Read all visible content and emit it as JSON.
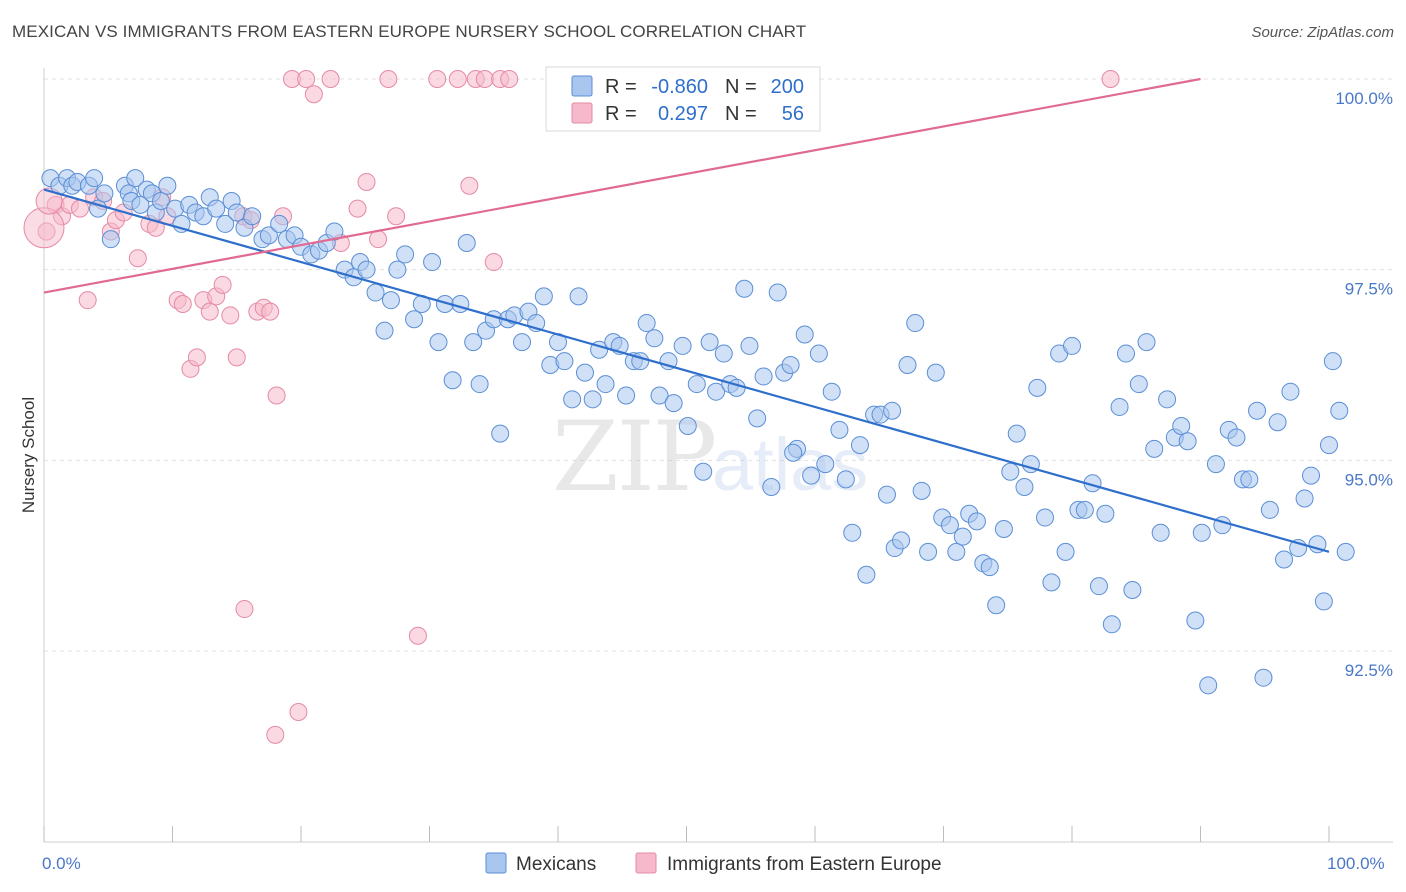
{
  "chart_data": {
    "type": "scatter",
    "title": "MEXICAN VS IMMIGRANTS FROM EASTERN EUROPE NURSERY SCHOOL CORRELATION CHART",
    "source": "Source: ZipAtlas.com",
    "xlabel": "",
    "ylabel": "Nursery School",
    "xlim": [
      0,
      100
    ],
    "ylim": [
      90.0,
      100.2
    ],
    "x_tick_labels": [
      "0.0%",
      "100.0%"
    ],
    "y_ticks": [
      92.5,
      95.0,
      97.5,
      100.0
    ],
    "y_tick_labels": [
      "92.5%",
      "95.0%",
      "97.5%",
      "100.0%"
    ],
    "watermark": {
      "zip": "ZIP",
      "atlas": "atlas"
    },
    "colors": {
      "blue_fill": "#a9c6ef",
      "blue_stroke": "#5b8fd6",
      "blue_line": "#2f6fcc",
      "pink_fill": "#f5b9cb",
      "pink_stroke": "#e58aa6",
      "pink_line": "#e06a92",
      "tick_text": "#4a78c8"
    },
    "legend": {
      "series": [
        {
          "r_label": "R =",
          "r_value": "-0.860",
          "n_label": "N =",
          "n_value": "200"
        },
        {
          "r_label": "R =",
          "r_value": "0.297",
          "n_label": "N =",
          "n_value": "56"
        }
      ]
    },
    "series": [
      {
        "name": "Mexicans",
        "trend": {
          "x0": 0,
          "y0": 98.55,
          "x1": 100,
          "y1": 93.8
        },
        "points": [
          [
            0.5,
            98.7
          ],
          [
            1.2,
            98.6
          ],
          [
            1.8,
            98.7
          ],
          [
            2.2,
            98.6
          ],
          [
            2.6,
            98.65
          ],
          [
            3.5,
            98.6
          ],
          [
            3.9,
            98.7
          ],
          [
            4.2,
            98.3
          ],
          [
            4.7,
            98.5
          ],
          [
            5.2,
            97.9
          ],
          [
            6.3,
            98.6
          ],
          [
            6.6,
            98.5
          ],
          [
            6.8,
            98.4
          ],
          [
            7.1,
            98.7
          ],
          [
            7.5,
            98.35
          ],
          [
            8.0,
            98.55
          ],
          [
            8.4,
            98.5
          ],
          [
            8.7,
            98.25
          ],
          [
            9.1,
            98.4
          ],
          [
            9.6,
            98.6
          ],
          [
            10.2,
            98.3
          ],
          [
            10.7,
            98.1
          ],
          [
            11.3,
            98.35
          ],
          [
            11.8,
            98.25
          ],
          [
            12.4,
            98.2
          ],
          [
            12.9,
            98.45
          ],
          [
            13.4,
            98.3
          ],
          [
            14.1,
            98.1
          ],
          [
            14.6,
            98.4
          ],
          [
            15.0,
            98.25
          ],
          [
            15.6,
            98.05
          ],
          [
            16.2,
            98.2
          ],
          [
            17.0,
            97.9
          ],
          [
            17.5,
            97.95
          ],
          [
            18.3,
            98.1
          ],
          [
            18.9,
            97.9
          ],
          [
            19.5,
            97.95
          ],
          [
            20.0,
            97.8
          ],
          [
            20.8,
            97.7
          ],
          [
            21.4,
            97.75
          ],
          [
            22.0,
            97.85
          ],
          [
            22.6,
            98.0
          ],
          [
            23.4,
            97.5
          ],
          [
            24.1,
            97.4
          ],
          [
            24.6,
            97.6
          ],
          [
            25.1,
            97.5
          ],
          [
            25.8,
            97.2
          ],
          [
            26.5,
            96.7
          ],
          [
            27.0,
            97.1
          ],
          [
            27.5,
            97.5
          ],
          [
            28.1,
            97.7
          ],
          [
            28.8,
            96.85
          ],
          [
            29.4,
            97.05
          ],
          [
            30.2,
            97.6
          ],
          [
            30.7,
            96.55
          ],
          [
            31.2,
            97.05
          ],
          [
            31.8,
            96.05
          ],
          [
            32.4,
            97.05
          ],
          [
            32.9,
            97.85
          ],
          [
            33.4,
            96.55
          ],
          [
            33.9,
            96.0
          ],
          [
            34.4,
            96.7
          ],
          [
            35.0,
            96.85
          ],
          [
            35.5,
            95.35
          ],
          [
            36.1,
            96.85
          ],
          [
            36.6,
            96.9
          ],
          [
            37.2,
            96.55
          ],
          [
            37.7,
            96.95
          ],
          [
            38.3,
            96.8
          ],
          [
            38.9,
            97.15
          ],
          [
            39.4,
            96.25
          ],
          [
            40.0,
            96.55
          ],
          [
            40.5,
            96.3
          ],
          [
            41.1,
            95.8
          ],
          [
            41.6,
            97.15
          ],
          [
            42.1,
            96.15
          ],
          [
            42.7,
            95.8
          ],
          [
            43.2,
            96.45
          ],
          [
            43.7,
            96.0
          ],
          [
            44.3,
            96.55
          ],
          [
            44.8,
            96.5
          ],
          [
            45.3,
            95.85
          ],
          [
            45.9,
            96.3
          ],
          [
            46.4,
            96.3
          ],
          [
            46.9,
            96.8
          ],
          [
            47.5,
            96.6
          ],
          [
            47.9,
            95.85
          ],
          [
            48.6,
            96.3
          ],
          [
            49.0,
            95.75
          ],
          [
            49.7,
            96.5
          ],
          [
            50.1,
            95.45
          ],
          [
            50.8,
            96.0
          ],
          [
            51.3,
            94.85
          ],
          [
            51.8,
            96.55
          ],
          [
            52.3,
            95.9
          ],
          [
            52.9,
            96.4
          ],
          [
            53.4,
            96.0
          ],
          [
            53.9,
            95.95
          ],
          [
            54.5,
            97.25
          ],
          [
            54.9,
            96.5
          ],
          [
            55.5,
            95.55
          ],
          [
            56.0,
            96.1
          ],
          [
            56.6,
            94.65
          ],
          [
            57.1,
            97.2
          ],
          [
            57.6,
            96.15
          ],
          [
            58.1,
            96.25
          ],
          [
            58.6,
            95.15
          ],
          [
            59.2,
            96.65
          ],
          [
            59.7,
            94.8
          ],
          [
            60.3,
            96.4
          ],
          [
            60.8,
            94.95
          ],
          [
            61.3,
            95.9
          ],
          [
            61.9,
            95.4
          ],
          [
            62.4,
            94.75
          ],
          [
            62.9,
            94.05
          ],
          [
            63.5,
            95.2
          ],
          [
            64.0,
            93.5
          ],
          [
            64.6,
            95.6
          ],
          [
            65.1,
            95.6
          ],
          [
            65.6,
            94.55
          ],
          [
            66.2,
            93.85
          ],
          [
            66.7,
            93.95
          ],
          [
            67.2,
            96.25
          ],
          [
            67.8,
            96.8
          ],
          [
            68.3,
            94.6
          ],
          [
            68.8,
            93.8
          ],
          [
            69.4,
            96.15
          ],
          [
            69.9,
            94.25
          ],
          [
            70.5,
            94.15
          ],
          [
            71.0,
            93.8
          ],
          [
            71.5,
            94.0
          ],
          [
            72.0,
            94.3
          ],
          [
            72.6,
            94.2
          ],
          [
            73.1,
            93.65
          ],
          [
            73.6,
            93.6
          ],
          [
            74.1,
            93.1
          ],
          [
            74.7,
            94.1
          ],
          [
            75.2,
            94.85
          ],
          [
            75.7,
            95.35
          ],
          [
            76.3,
            94.65
          ],
          [
            76.8,
            94.95
          ],
          [
            77.3,
            95.95
          ],
          [
            77.9,
            94.25
          ],
          [
            78.4,
            93.4
          ],
          [
            79.0,
            96.4
          ],
          [
            79.5,
            93.8
          ],
          [
            80.0,
            96.5
          ],
          [
            80.5,
            94.35
          ],
          [
            81.0,
            94.35
          ],
          [
            81.6,
            94.7
          ],
          [
            82.1,
            93.35
          ],
          [
            82.6,
            94.3
          ],
          [
            83.1,
            92.85
          ],
          [
            83.7,
            95.7
          ],
          [
            84.2,
            96.4
          ],
          [
            84.7,
            93.3
          ],
          [
            85.2,
            96.0
          ],
          [
            85.8,
            96.55
          ],
          [
            86.4,
            95.15
          ],
          [
            86.9,
            94.05
          ],
          [
            87.4,
            95.8
          ],
          [
            88.0,
            95.3
          ],
          [
            88.5,
            95.45
          ],
          [
            89.0,
            95.25
          ],
          [
            89.6,
            92.9
          ],
          [
            90.1,
            94.05
          ],
          [
            90.6,
            92.05
          ],
          [
            91.2,
            94.95
          ],
          [
            91.7,
            94.15
          ],
          [
            92.2,
            95.4
          ],
          [
            92.8,
            95.3
          ],
          [
            93.3,
            94.75
          ],
          [
            93.8,
            94.75
          ],
          [
            94.4,
            95.65
          ],
          [
            94.9,
            92.15
          ],
          [
            95.4,
            94.35
          ],
          [
            96.0,
            95.5
          ],
          [
            96.5,
            93.7
          ],
          [
            97.0,
            95.9
          ],
          [
            97.6,
            93.85
          ],
          [
            98.1,
            94.5
          ],
          [
            98.6,
            94.8
          ],
          [
            99.1,
            93.9
          ],
          [
            99.6,
            93.15
          ],
          [
            100.0,
            95.2
          ],
          [
            100.3,
            96.3
          ],
          [
            100.8,
            95.65
          ],
          [
            101.3,
            93.8
          ],
          [
            66.0,
            95.65
          ],
          [
            58.3,
            95.1
          ]
        ]
      },
      {
        "name": "Immigrants from Eastern Europe",
        "trend": {
          "x0": 0,
          "y0": 97.2,
          "x1": 90,
          "y1": 100.0
        },
        "points": [
          [
            0.2,
            98.0
          ],
          [
            0.9,
            98.35
          ],
          [
            1.4,
            98.2
          ],
          [
            2.0,
            98.35
          ],
          [
            2.8,
            98.3
          ],
          [
            3.4,
            97.1
          ],
          [
            3.9,
            98.45
          ],
          [
            4.6,
            98.4
          ],
          [
            5.2,
            98.0
          ],
          [
            5.6,
            98.15
          ],
          [
            6.2,
            98.25
          ],
          [
            7.3,
            97.65
          ],
          [
            8.2,
            98.1
          ],
          [
            8.7,
            98.05
          ],
          [
            9.2,
            98.45
          ],
          [
            9.6,
            98.2
          ],
          [
            10.4,
            97.1
          ],
          [
            10.8,
            97.05
          ],
          [
            11.4,
            96.2
          ],
          [
            11.9,
            96.35
          ],
          [
            12.4,
            97.1
          ],
          [
            12.9,
            96.95
          ],
          [
            13.4,
            97.15
          ],
          [
            13.9,
            97.3
          ],
          [
            14.5,
            96.9
          ],
          [
            15.0,
            96.35
          ],
          [
            15.5,
            98.2
          ],
          [
            16.1,
            98.15
          ],
          [
            16.6,
            96.95
          ],
          [
            17.1,
            97.0
          ],
          [
            17.6,
            96.95
          ],
          [
            18.1,
            95.85
          ],
          [
            18.6,
            98.2
          ],
          [
            19.3,
            100.0
          ],
          [
            20.4,
            100.0
          ],
          [
            21.0,
            99.8
          ],
          [
            22.3,
            100.0
          ],
          [
            23.1,
            97.85
          ],
          [
            24.4,
            98.3
          ],
          [
            25.1,
            98.65
          ],
          [
            26.0,
            97.9
          ],
          [
            26.8,
            100.0
          ],
          [
            27.4,
            98.2
          ],
          [
            29.1,
            92.7
          ],
          [
            30.6,
            100.0
          ],
          [
            32.2,
            100.0
          ],
          [
            33.1,
            98.6
          ],
          [
            33.6,
            100.0
          ],
          [
            34.3,
            100.0
          ],
          [
            35.0,
            97.6
          ],
          [
            35.5,
            100.0
          ],
          [
            36.2,
            100.0
          ],
          [
            18.0,
            91.4
          ],
          [
            19.8,
            91.7
          ],
          [
            15.6,
            93.05
          ],
          [
            83.0,
            100.0
          ]
        ]
      }
    ],
    "bottom_legend": [
      {
        "label": "Mexicans"
      },
      {
        "label": "Immigrants from Eastern Europe"
      }
    ]
  }
}
